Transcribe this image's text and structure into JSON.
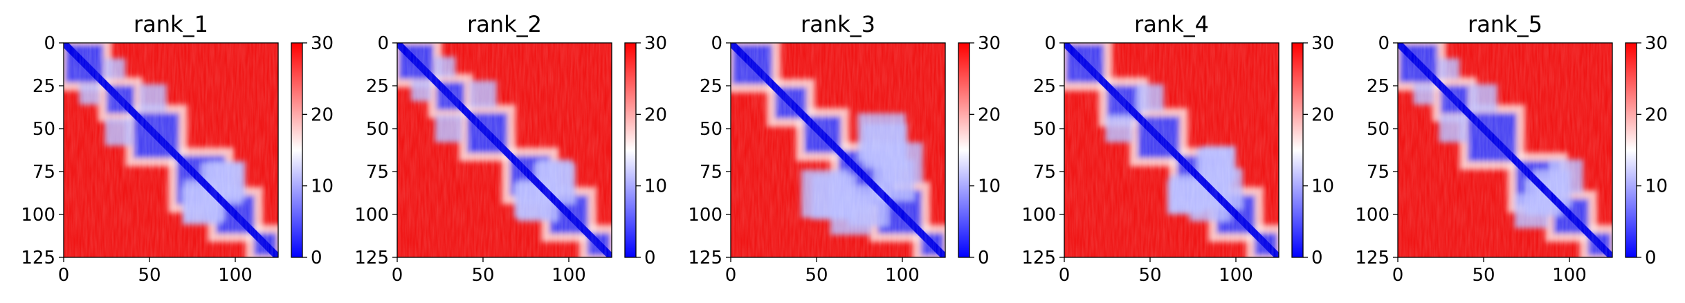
{
  "chart_data": [
    {
      "type": "heatmap",
      "title": "rank_1",
      "xlim": [
        0,
        125
      ],
      "ylim": [
        125,
        0
      ],
      "xticks": [
        0,
        50,
        100
      ],
      "yticks": [
        0,
        25,
        50,
        75,
        100,
        125
      ],
      "colorbar": {
        "range": [
          0,
          30
        ],
        "ticks": [
          0,
          10,
          20,
          30
        ],
        "colormap": [
          "#0000ff",
          "#ffffff",
          "#ff0000"
        ]
      },
      "domains": [
        [
          0,
          24
        ],
        [
          24,
          42
        ],
        [
          40,
          68
        ],
        [
          65,
          95
        ],
        [
          88,
          112
        ],
        [
          110,
          125
        ]
      ],
      "blue_patches": [
        [
          32,
          52,
          8
        ],
        [
          82,
          92,
          12
        ],
        [
          80,
          95,
          11
        ],
        [
          15,
          30,
          6
        ]
      ]
    },
    {
      "type": "heatmap",
      "title": "rank_2",
      "xlim": [
        0,
        125
      ],
      "ylim": [
        125,
        0
      ],
      "xticks": [
        0,
        50,
        100
      ],
      "yticks": [
        0,
        25,
        50,
        75,
        100,
        125
      ],
      "colorbar": {
        "range": [
          0,
          30
        ],
        "ticks": [
          0,
          10,
          20,
          30
        ],
        "colormap": [
          "#0000ff",
          "#ffffff",
          "#ff0000"
        ]
      },
      "domains": [
        [
          0,
          22
        ],
        [
          22,
          40
        ],
        [
          40,
          65
        ],
        [
          65,
          90
        ],
        [
          88,
          112
        ],
        [
          110,
          125
        ]
      ],
      "blue_patches": [
        [
          30,
          50,
          8
        ],
        [
          82,
          92,
          12
        ],
        [
          78,
          92,
          10
        ],
        [
          14,
          28,
          6
        ]
      ]
    },
    {
      "type": "heatmap",
      "title": "rank_3",
      "xlim": [
        0,
        125
      ],
      "ylim": [
        125,
        0
      ],
      "xticks": [
        0,
        50,
        100
      ],
      "yticks": [
        0,
        25,
        50,
        75,
        100,
        125
      ],
      "colorbar": {
        "range": [
          0,
          30
        ],
        "ticks": [
          0,
          10,
          20,
          30
        ],
        "colormap": [
          "#0000ff",
          "#ffffff",
          "#ff0000"
        ]
      },
      "domains": [
        [
          0,
          25
        ],
        [
          25,
          45
        ],
        [
          42,
          65
        ],
        [
          62,
          95
        ],
        [
          85,
          112
        ],
        [
          110,
          125
        ]
      ],
      "blue_patches": [
        [
          55,
          88,
          14
        ],
        [
          90,
          60,
          13
        ],
        [
          95,
          80,
          12
        ],
        [
          70,
          100,
          12
        ]
      ]
    },
    {
      "type": "heatmap",
      "title": "rank_4",
      "xlim": [
        0,
        125
      ],
      "ylim": [
        125,
        0
      ],
      "xticks": [
        0,
        50,
        100
      ],
      "yticks": [
        0,
        25,
        50,
        75,
        100,
        125
      ],
      "colorbar": {
        "range": [
          0,
          30
        ],
        "ticks": [
          0,
          10,
          20,
          30
        ],
        "colormap": [
          "#0000ff",
          "#ffffff",
          "#ff0000"
        ]
      },
      "domains": [
        [
          0,
          24
        ],
        [
          24,
          45
        ],
        [
          42,
          68
        ],
        [
          65,
          92
        ],
        [
          88,
          112
        ],
        [
          110,
          125
        ]
      ],
      "blue_patches": [
        [
          32,
          50,
          8
        ],
        [
          85,
          92,
          12
        ],
        [
          88,
          72,
          11
        ],
        [
          70,
          90,
          10
        ]
      ]
    },
    {
      "type": "heatmap",
      "title": "rank_5",
      "xlim": [
        0,
        125
      ],
      "ylim": [
        125,
        0
      ],
      "xticks": [
        0,
        50,
        100
      ],
      "yticks": [
        0,
        25,
        50,
        75,
        100,
        125
      ],
      "colorbar": {
        "range": [
          0,
          30
        ],
        "ticks": [
          0,
          10,
          20,
          30
        ],
        "colormap": [
          "#0000ff",
          "#ffffff",
          "#ff0000"
        ]
      },
      "domains": [
        [
          0,
          24
        ],
        [
          24,
          42
        ],
        [
          40,
          70
        ],
        [
          68,
          95
        ],
        [
          90,
          112
        ],
        [
          110,
          125
        ]
      ],
      "blue_patches": [
        [
          32,
          50,
          8
        ],
        [
          85,
          90,
          11
        ],
        [
          78,
          98,
          10
        ],
        [
          15,
          30,
          6
        ]
      ]
    }
  ]
}
